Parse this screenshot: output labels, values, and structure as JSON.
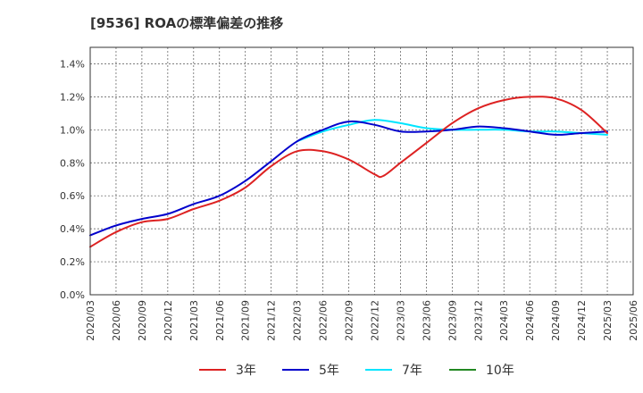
{
  "chart_data": {
    "type": "line",
    "title": "[9536]  ROAの標準偏差の推移",
    "xlabel": "",
    "ylabel": "",
    "ylim": [
      0,
      1.5
    ],
    "yticks": [
      "0.0%",
      "0.2%",
      "0.4%",
      "0.6%",
      "0.8%",
      "1.0%",
      "1.2%",
      "1.4%"
    ],
    "ytick_values": [
      0,
      0.2,
      0.4,
      0.6,
      0.8,
      1.0,
      1.2,
      1.4
    ],
    "x_ticks": [
      "2020/03",
      "2020/06",
      "2020/09",
      "2020/12",
      "2021/03",
      "2021/06",
      "2021/09",
      "2021/12",
      "2022/03",
      "2022/06",
      "2022/09",
      "2022/12",
      "2023/03",
      "2023/06",
      "2023/09",
      "2023/12",
      "2024/03",
      "2024/06",
      "2024/09",
      "2024/12",
      "2025/03",
      "2025/06"
    ],
    "grid": true,
    "legend_position": "bottom",
    "series": [
      {
        "name": "3年",
        "color": "#dd2222",
        "x": [
          "2020/03",
          "2020/06",
          "2020/09",
          "2020/12",
          "2021/03",
          "2021/06",
          "2021/09",
          "2021/12",
          "2022/03",
          "2022/06",
          "2022/09",
          "2022/12",
          "2023/01",
          "2023/03",
          "2023/06",
          "2023/09",
          "2023/12",
          "2024/03",
          "2024/06",
          "2024/09",
          "2024/12",
          "2025/03"
        ],
        "values": [
          0.29,
          0.38,
          0.44,
          0.46,
          0.52,
          0.57,
          0.65,
          0.78,
          0.87,
          0.87,
          0.82,
          0.73,
          0.72,
          0.8,
          0.92,
          1.04,
          1.13,
          1.18,
          1.2,
          1.19,
          1.12,
          0.98
        ]
      },
      {
        "name": "5年",
        "color": "#0000cc",
        "x": [
          "2020/03",
          "2020/06",
          "2020/09",
          "2020/12",
          "2021/03",
          "2021/06",
          "2021/09",
          "2021/12",
          "2022/03",
          "2022/06",
          "2022/09",
          "2022/12",
          "2023/03",
          "2023/06",
          "2023/09",
          "2023/12",
          "2024/03",
          "2024/06",
          "2024/09",
          "2024/12",
          "2025/03"
        ],
        "values": [
          0.36,
          0.42,
          0.46,
          0.49,
          0.55,
          0.6,
          0.69,
          0.81,
          0.93,
          1.0,
          1.05,
          1.03,
          0.99,
          0.99,
          1.0,
          1.02,
          1.01,
          0.99,
          0.97,
          0.98,
          0.99
        ]
      },
      {
        "name": "7年",
        "color": "#00e5ff",
        "x": [
          "2022/03",
          "2022/06",
          "2022/09",
          "2022/12",
          "2023/03",
          "2023/06",
          "2023/09",
          "2023/12",
          "2024/03",
          "2024/06",
          "2024/09",
          "2024/12",
          "2025/03"
        ],
        "values": [
          0.93,
          0.99,
          1.03,
          1.06,
          1.04,
          1.01,
          1.0,
          1.0,
          1.0,
          0.99,
          0.99,
          0.98,
          0.97
        ]
      },
      {
        "name": "10年",
        "color": "#228822",
        "x": [],
        "values": []
      }
    ]
  }
}
